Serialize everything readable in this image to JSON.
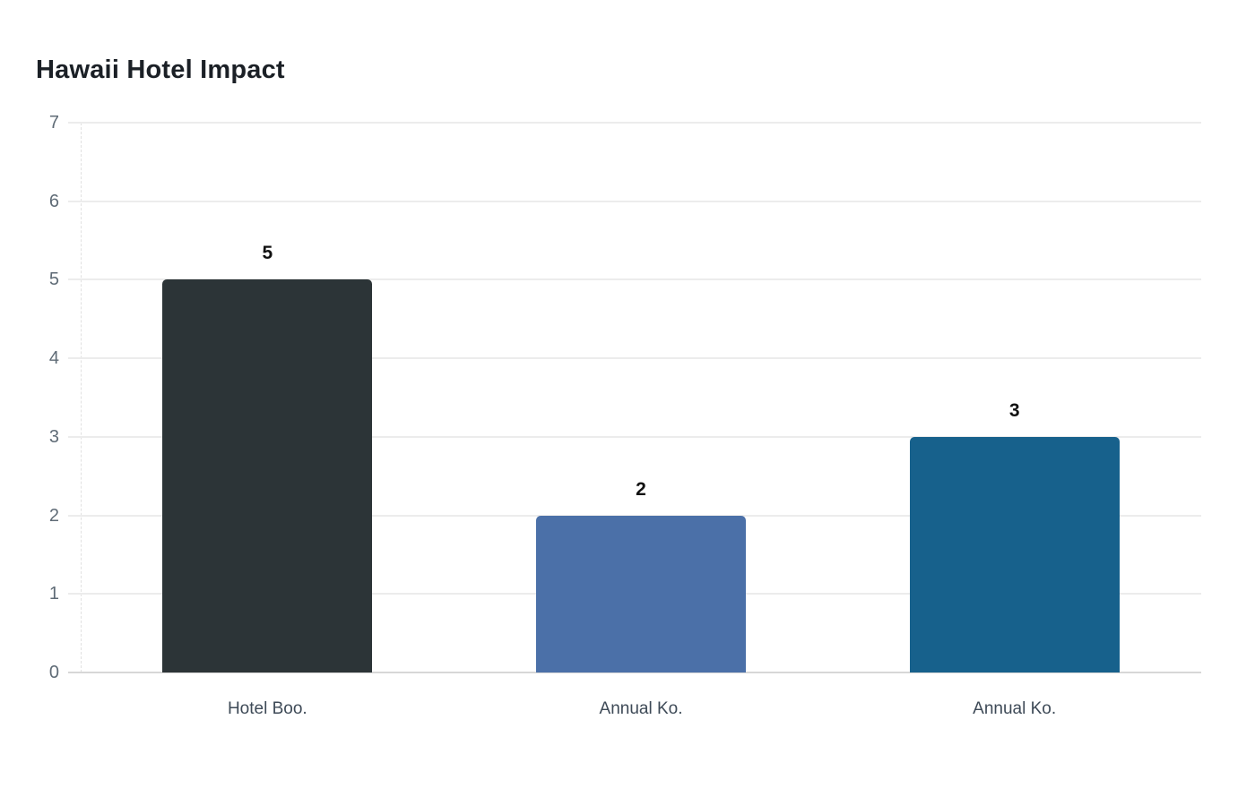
{
  "chart_data": {
    "type": "bar",
    "title": "Hawaii Hotel Impact",
    "categories": [
      "Hotel Boo.",
      "Annual Ko.",
      "Annual Ko."
    ],
    "values": [
      5,
      2,
      3
    ],
    "value_labels": [
      "5",
      "2",
      "3"
    ],
    "bar_colors": [
      "#2c3437",
      "#4b70a8",
      "#17618c"
    ],
    "xlabel": "",
    "ylabel": "",
    "ylim": [
      0,
      7
    ],
    "yticks": [
      0,
      1,
      2,
      3,
      4,
      5,
      6,
      7
    ],
    "grid": "horizontal",
    "legend_position": "none"
  },
  "colors": {
    "background": "#ffffff",
    "title": "#1b2026",
    "tick_label": "#5f6b76",
    "category_label": "#3e4a57",
    "value_label": "#111111",
    "gridline": "#ececec",
    "baseline": "#d7d7d7",
    "axis_dash": "#e1e1e1"
  }
}
